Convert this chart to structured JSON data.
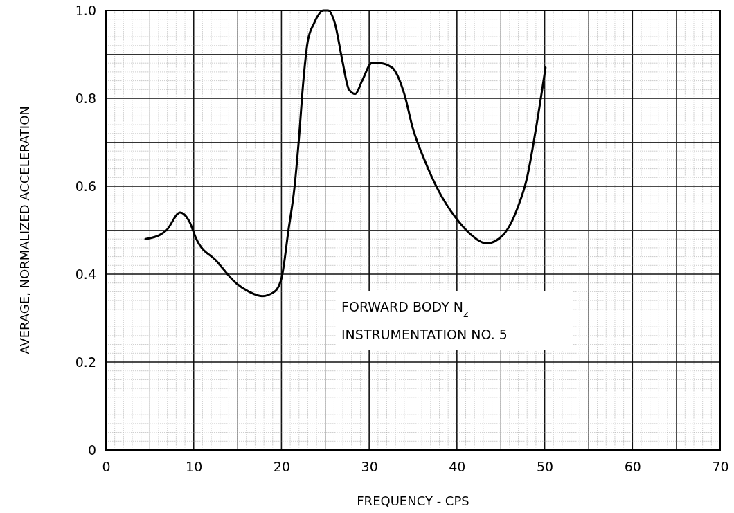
{
  "chart_data": {
    "type": "line",
    "xlabel": "FREQUENCY - CPS",
    "ylabel": "AVERAGE, NORMALIZED ACCELERATION",
    "annotations": [
      "FORWARD BODY N$_{z}$",
      "INSTRUMENTATION NO. 5"
    ],
    "xlim": [
      0,
      70
    ],
    "xticks": [
      0,
      10,
      20,
      30,
      40,
      50,
      60,
      70
    ],
    "ylim": [
      0,
      1
    ],
    "yticks": [
      0,
      0.2,
      0.4,
      0.6,
      0.8,
      {
        "value": 1,
        "label": "1.0"
      }
    ],
    "grid": true,
    "marker": "none",
    "line_style": "solid",
    "series": [
      {
        "color": "#000000",
        "x": [
          4.5,
          6.2,
          6.9,
          8.45,
          9.5,
          10.3,
          12.6,
          14.8,
          16.3,
          17.8,
          19.2,
          20.0,
          20.8,
          21.5,
          22.0,
          22.5,
          23.0,
          23.7,
          24.8,
          25.3,
          26.1,
          26.9,
          27.7,
          28.4,
          29.2,
          30.3,
          31.2,
          32.6,
          34.0,
          35.0,
          36.3,
          37.9,
          39.8,
          41.6,
          43.4,
          45.3,
          46.9,
          48.0,
          49.0,
          50.1
        ],
        "values": [
          0.48,
          0.49,
          0.5,
          0.54,
          0.52,
          0.48,
          0.43,
          0.38,
          0.36,
          0.35,
          0.36,
          0.39,
          0.5,
          0.6,
          0.71,
          0.84,
          0.93,
          0.97,
          1.0,
          1.0,
          0.97,
          0.89,
          0.82,
          0.81,
          0.84,
          0.88,
          0.88,
          0.87,
          0.81,
          0.73,
          0.66,
          0.59,
          0.53,
          0.49,
          0.47,
          0.49,
          0.55,
          0.62,
          0.73,
          0.87
        ]
      }
    ]
  }
}
